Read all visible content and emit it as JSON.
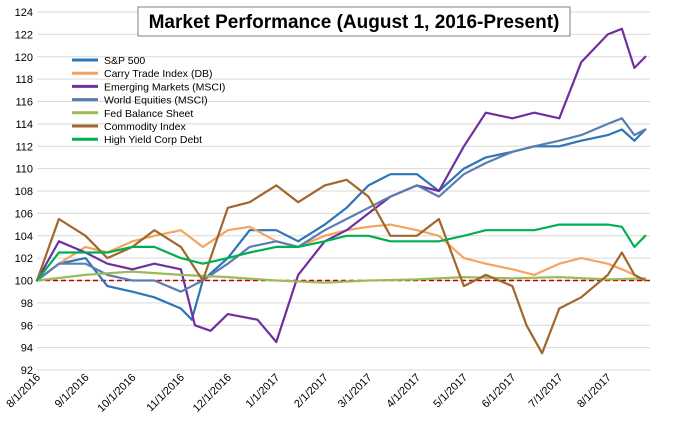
{
  "chart_data": {
    "type": "line",
    "title": "Market Performance (August 1, 2016-Present)",
    "xlabel": "",
    "ylabel": "",
    "ylim": [
      92,
      124
    ],
    "yticks": [
      92,
      94,
      96,
      98,
      100,
      102,
      104,
      106,
      108,
      110,
      112,
      114,
      116,
      118,
      120,
      122,
      124
    ],
    "x_tick_labels": [
      "8/1/2016",
      "9/1/2016",
      "10/1/2016",
      "11/1/2016",
      "12/1/2016",
      "1/1/2017",
      "2/1/2017",
      "3/1/2017",
      "4/1/2017",
      "5/1/2017",
      "6/1/2017",
      "7/1/2017",
      "8/1/2017"
    ],
    "grid": true,
    "legend_position": "top-left",
    "baseline": {
      "value": 100,
      "color": "#c00000",
      "style": "dashed"
    },
    "series": [
      {
        "name": "S&P 500",
        "color": "#2e75b6",
        "x": [
          "2016-08-01",
          "2016-08-15",
          "2016-09-01",
          "2016-09-15",
          "2016-10-01",
          "2016-10-15",
          "2016-11-01",
          "2016-11-08",
          "2016-11-15",
          "2016-12-01",
          "2016-12-15",
          "2017-01-01",
          "2017-01-15",
          "2017-02-01",
          "2017-02-15",
          "2017-03-01",
          "2017-03-15",
          "2017-04-01",
          "2017-04-15",
          "2017-05-01",
          "2017-05-15",
          "2017-06-01",
          "2017-06-15",
          "2017-07-01",
          "2017-07-15",
          "2017-08-01",
          "2017-08-10",
          "2017-08-18",
          "2017-08-25"
        ],
        "values": [
          100,
          101.5,
          102.0,
          99.5,
          99.0,
          98.5,
          97.5,
          96.5,
          100.0,
          102.0,
          104.5,
          104.5,
          103.5,
          105.0,
          106.5,
          108.5,
          109.5,
          109.5,
          108.0,
          110.0,
          111.0,
          111.5,
          112.0,
          112.0,
          112.5,
          113.0,
          113.5,
          112.5,
          113.5
        ]
      },
      {
        "name": "Carry Trade Index (DB)",
        "color": "#f4a460",
        "x": [
          "2016-08-01",
          "2016-08-15",
          "2016-09-01",
          "2016-09-15",
          "2016-10-01",
          "2016-10-15",
          "2016-11-01",
          "2016-11-15",
          "2016-12-01",
          "2016-12-15",
          "2017-01-01",
          "2017-01-15",
          "2017-02-01",
          "2017-02-15",
          "2017-03-01",
          "2017-03-15",
          "2017-04-01",
          "2017-04-15",
          "2017-05-01",
          "2017-05-15",
          "2017-06-01",
          "2017-06-15",
          "2017-07-01",
          "2017-07-15",
          "2017-08-01",
          "2017-08-10",
          "2017-08-18",
          "2017-08-25"
        ],
        "values": [
          100,
          101.5,
          103.0,
          102.5,
          103.5,
          104.0,
          104.5,
          103.0,
          104.5,
          104.8,
          103.5,
          103.0,
          104.0,
          104.5,
          104.8,
          105.0,
          104.5,
          104.0,
          102.0,
          101.5,
          101.0,
          100.5,
          101.5,
          102.0,
          101.5,
          101.0,
          100.5,
          100.0
        ]
      },
      {
        "name": "Emerging Markets (MSCI)",
        "color": "#7030a0",
        "x": [
          "2016-08-01",
          "2016-08-15",
          "2016-09-01",
          "2016-09-15",
          "2016-10-01",
          "2016-10-15",
          "2016-11-01",
          "2016-11-10",
          "2016-11-20",
          "2016-12-01",
          "2016-12-20",
          "2017-01-01",
          "2017-01-15",
          "2017-02-01",
          "2017-02-15",
          "2017-03-01",
          "2017-03-15",
          "2017-04-01",
          "2017-04-15",
          "2017-05-01",
          "2017-05-15",
          "2017-06-01",
          "2017-06-15",
          "2017-07-01",
          "2017-07-15",
          "2017-08-01",
          "2017-08-10",
          "2017-08-18",
          "2017-08-25"
        ],
        "values": [
          100,
          103.5,
          102.5,
          101.5,
          101.0,
          101.5,
          101.0,
          96.0,
          95.5,
          97.0,
          96.5,
          94.5,
          100.5,
          103.5,
          104.5,
          106.0,
          107.5,
          108.5,
          108.0,
          112.0,
          115.0,
          114.5,
          115.0,
          114.5,
          119.5,
          122.0,
          122.5,
          119.0,
          120.0
        ]
      },
      {
        "name": "World Equities (MSCI)",
        "color": "#5b7db1",
        "x": [
          "2016-08-01",
          "2016-08-15",
          "2016-09-01",
          "2016-09-15",
          "2016-10-01",
          "2016-10-15",
          "2016-11-01",
          "2016-11-15",
          "2016-12-01",
          "2016-12-15",
          "2017-01-01",
          "2017-01-15",
          "2017-02-01",
          "2017-02-15",
          "2017-03-01",
          "2017-03-15",
          "2017-04-01",
          "2017-04-15",
          "2017-05-01",
          "2017-05-15",
          "2017-06-01",
          "2017-06-15",
          "2017-07-01",
          "2017-07-15",
          "2017-08-01",
          "2017-08-10",
          "2017-08-18",
          "2017-08-25"
        ],
        "values": [
          100,
          101.5,
          101.5,
          100.5,
          100.0,
          100.0,
          99.0,
          100.0,
          101.5,
          103.0,
          103.5,
          103.0,
          104.5,
          105.5,
          106.5,
          107.5,
          108.5,
          107.5,
          109.5,
          110.5,
          111.5,
          112.0,
          112.5,
          113.0,
          114.0,
          114.5,
          113.0,
          113.5
        ]
      },
      {
        "name": "Fed Balance Sheet",
        "color": "#9bbb59",
        "x": [
          "2016-08-01",
          "2016-09-01",
          "2016-10-01",
          "2016-11-01",
          "2016-12-01",
          "2017-01-01",
          "2017-02-01",
          "2017-03-01",
          "2017-04-01",
          "2017-05-01",
          "2017-06-01",
          "2017-07-01",
          "2017-08-01",
          "2017-08-25"
        ],
        "values": [
          100,
          100.5,
          100.8,
          100.5,
          100.3,
          100.0,
          99.8,
          100.0,
          100.1,
          100.3,
          100.2,
          100.3,
          100.1,
          100.2
        ]
      },
      {
        "name": "Commodity Index",
        "color": "#a0662b",
        "x": [
          "2016-08-01",
          "2016-08-15",
          "2016-09-01",
          "2016-09-15",
          "2016-10-01",
          "2016-10-15",
          "2016-11-01",
          "2016-11-15",
          "2016-12-01",
          "2016-12-15",
          "2017-01-01",
          "2017-01-15",
          "2017-02-01",
          "2017-02-15",
          "2017-03-01",
          "2017-03-15",
          "2017-04-01",
          "2017-04-15",
          "2017-05-01",
          "2017-05-15",
          "2017-06-01",
          "2017-06-10",
          "2017-06-20",
          "2017-07-01",
          "2017-07-15",
          "2017-08-01",
          "2017-08-10",
          "2017-08-18",
          "2017-08-25"
        ],
        "values": [
          100,
          105.5,
          104.0,
          102.0,
          103.0,
          104.5,
          103.0,
          100.0,
          106.5,
          107.0,
          108.5,
          107.0,
          108.5,
          109.0,
          107.5,
          104.0,
          104.0,
          105.5,
          99.5,
          100.5,
          99.5,
          96.0,
          93.5,
          97.5,
          98.5,
          100.5,
          102.5,
          100.5,
          100.0
        ]
      },
      {
        "name": "High Yield Corp Debt",
        "color": "#00b050",
        "x": [
          "2016-08-01",
          "2016-08-15",
          "2016-09-01",
          "2016-09-15",
          "2016-10-01",
          "2016-10-15",
          "2016-11-01",
          "2016-11-15",
          "2016-12-01",
          "2016-12-15",
          "2017-01-01",
          "2017-01-15",
          "2017-02-01",
          "2017-02-15",
          "2017-03-01",
          "2017-03-15",
          "2017-04-01",
          "2017-04-15",
          "2017-05-01",
          "2017-05-15",
          "2017-06-01",
          "2017-06-15",
          "2017-07-01",
          "2017-07-15",
          "2017-08-01",
          "2017-08-10",
          "2017-08-18",
          "2017-08-25"
        ],
        "values": [
          100,
          102.5,
          102.5,
          102.5,
          103.0,
          103.0,
          102.0,
          101.5,
          102.0,
          102.5,
          103.0,
          103.0,
          103.5,
          104.0,
          104.0,
          103.5,
          103.5,
          103.5,
          104.0,
          104.5,
          104.5,
          104.5,
          105.0,
          105.0,
          105.0,
          104.8,
          103.0,
          104.0
        ]
      }
    ]
  }
}
